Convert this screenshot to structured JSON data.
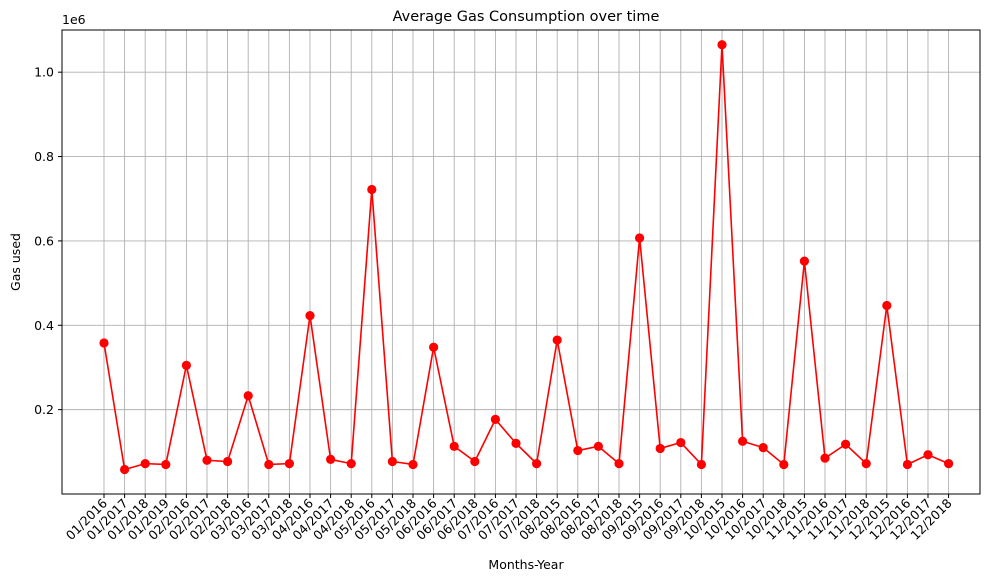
{
  "chart_data": {
    "type": "line",
    "title": "Average Gas Consumption over time",
    "xlabel": "Months-Year",
    "ylabel": "Gas used",
    "y_offset_label": "1e6",
    "ylim": [
      0.0,
      1.1
    ],
    "y_ticks": [
      "0.2",
      "0.4",
      "0.6",
      "0.8",
      "1.0"
    ],
    "grid": true,
    "color": "#ff0000",
    "marker": "circle",
    "categories": [
      "01/2016",
      "01/2017",
      "01/2018",
      "01/2019",
      "02/2016",
      "02/2017",
      "02/2018",
      "03/2016",
      "03/2017",
      "03/2018",
      "04/2016",
      "04/2017",
      "04/2018",
      "05/2016",
      "05/2017",
      "05/2018",
      "06/2016",
      "06/2017",
      "06/2018",
      "07/2016",
      "07/2017",
      "07/2018",
      "08/2015",
      "08/2016",
      "08/2017",
      "08/2018",
      "09/2015",
      "09/2016",
      "09/2017",
      "09/2018",
      "10/2015",
      "10/2016",
      "10/2017",
      "10/2018",
      "11/2015",
      "11/2016",
      "11/2017",
      "11/2018",
      "12/2015",
      "12/2016",
      "12/2017",
      "12/2018"
    ],
    "values": [
      0.358,
      0.058,
      0.072,
      0.07,
      0.305,
      0.08,
      0.077,
      0.233,
      0.07,
      0.072,
      0.423,
      0.082,
      0.072,
      0.722,
      0.077,
      0.07,
      0.348,
      0.113,
      0.077,
      0.177,
      0.12,
      0.072,
      0.365,
      0.103,
      0.113,
      0.072,
      0.607,
      0.108,
      0.122,
      0.07,
      1.065,
      0.125,
      0.11,
      0.07,
      0.552,
      0.085,
      0.118,
      0.072,
      0.447,
      0.07,
      0.093,
      0.072
    ]
  }
}
